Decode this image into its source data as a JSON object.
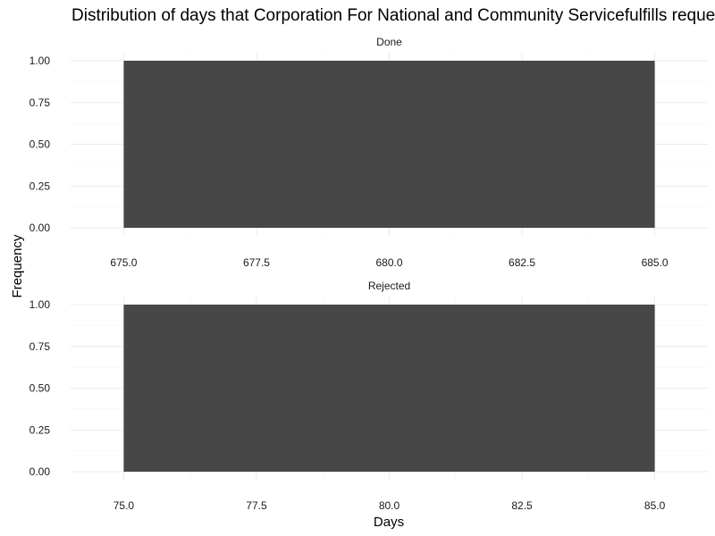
{
  "chart_data": {
    "type": "bar",
    "title": "Distribution of days that Corporation For National and Community Servicefulfills requests",
    "xlabel": "Days",
    "ylabel": "Frequency",
    "grid": true,
    "bar_color": "#474747",
    "facets": [
      {
        "label": "Done",
        "bars": [
          {
            "x_start": 675,
            "x_end": 685,
            "count": 1
          }
        ],
        "xlim": [
          674.0,
          686.0
        ],
        "xticks": [
          "675.0",
          "677.5",
          "680.0",
          "682.5",
          "685.0"
        ],
        "ylim": [
          0,
          1.0
        ],
        "yticks": [
          "0.00",
          "0.25",
          "0.50",
          "0.75",
          "1.00"
        ]
      },
      {
        "label": "Rejected",
        "bars": [
          {
            "x_start": 75,
            "x_end": 85,
            "count": 1
          }
        ],
        "xlim": [
          74.0,
          86.0
        ],
        "xticks": [
          "75.0",
          "77.5",
          "80.0",
          "82.5",
          "85.0"
        ],
        "ylim": [
          0,
          1.0
        ],
        "yticks": [
          "0.00",
          "0.25",
          "0.50",
          "0.75",
          "1.00"
        ]
      }
    ]
  }
}
